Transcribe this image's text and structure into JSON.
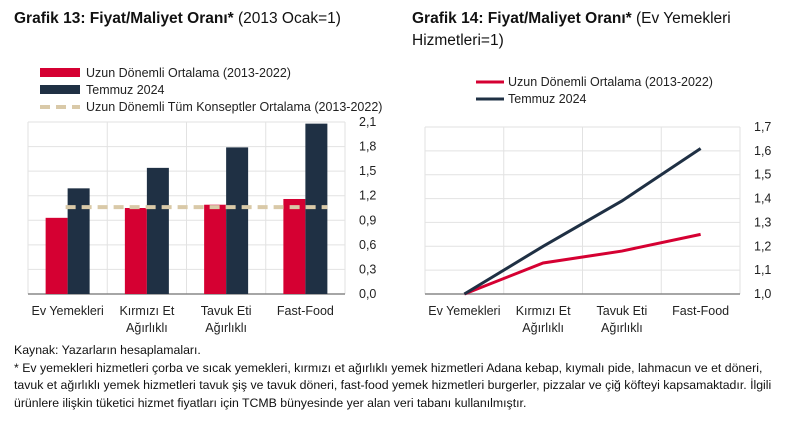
{
  "chart_data": [
    {
      "type": "bar",
      "title_bold": "Grafik 13: Fiyat/Maliyet Oranı*",
      "title_rest": " (2013 Ocak=1)",
      "categories": [
        [
          "Ev Yemekleri"
        ],
        [
          "Kırmızı Et",
          "Ağırlıklı"
        ],
        [
          "Tavuk Eti",
          "Ağırlıklı"
        ],
        [
          "Fast-Food"
        ]
      ],
      "series": [
        {
          "name": "Uzun Dönemli Ortalama (2013-2022)",
          "color": "#d50032",
          "values": [
            0.93,
            1.05,
            1.09,
            1.16
          ]
        },
        {
          "name": "Temmuz 2024",
          "color": "#1f3044",
          "values": [
            1.29,
            1.54,
            1.79,
            2.08
          ]
        }
      ],
      "reference_line": {
        "name": "Uzun Dönemli Tüm Konseptler Ortalama (2013-2022)",
        "color": "#d9c9a8",
        "value": 1.06
      },
      "ylim": [
        0,
        2.1
      ],
      "yticks": [
        "0,0",
        "0,3",
        "0,6",
        "0,9",
        "1,2",
        "1,5",
        "1,8",
        "2,1"
      ],
      "grid": true,
      "legend": "top-left",
      "yaxis": "right"
    },
    {
      "type": "line",
      "title_bold": "Grafik 14: Fiyat/Maliyet Oranı*",
      "title_rest": " (Ev Yemekleri Hizmetleri=1)",
      "categories": [
        [
          "Ev Yemekleri"
        ],
        [
          "Kırmızı Et",
          "Ağırlıklı"
        ],
        [
          "Tavuk Eti",
          "Ağırlıklı"
        ],
        [
          "Fast-Food"
        ]
      ],
      "series": [
        {
          "name": "Uzun Dönemli Ortalama (2013-2022)",
          "color": "#d50032",
          "values": [
            1.0,
            1.13,
            1.18,
            1.25
          ]
        },
        {
          "name": "Temmuz 2024",
          "color": "#1f3044",
          "values": [
            1.0,
            1.2,
            1.39,
            1.61
          ]
        }
      ],
      "ylim": [
        1.0,
        1.7
      ],
      "yticks": [
        "1,0",
        "1,1",
        "1,2",
        "1,3",
        "1,4",
        "1,5",
        "1,6",
        "1,7"
      ],
      "grid": true,
      "legend": "top-left",
      "yaxis": "right"
    }
  ],
  "notes": {
    "source": "Kaynak: Yazarların hesaplamaları.",
    "footnote": "* Ev yemekleri hizmetleri çorba ve sıcak yemekleri, kırmızı et ağırlıklı yemek hizmetleri Adana kebap, kıymalı pide, lahmacun ve et döneri, tavuk et ağırlıklı yemek hizmetleri tavuk şiş ve tavuk döneri, fast-food yemek hizmetleri burgerler, pizzalar ve çiğ köfteyi kapsamaktadır. İlgili ürünlere ilişkin tüketici hizmet fiyatları için TCMB bünyesinde yer alan veri tabanı kullanılmıştır."
  }
}
